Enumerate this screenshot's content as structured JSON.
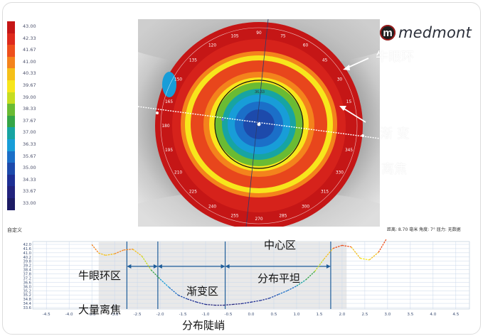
{
  "brand": {
    "logo_letter": "m",
    "name": "medmont"
  },
  "scale": {
    "values": [
      "43.00",
      "42.33",
      "41.67",
      "41.00",
      "40.33",
      "39.67",
      "39.00",
      "38.33",
      "37.67",
      "37.00",
      "36.33",
      "35.67",
      "35.00",
      "34.33",
      "33.67",
      "33.00"
    ],
    "colors": [
      "#c51616",
      "#de2a1c",
      "#ee4f1c",
      "#f4831c",
      "#f5c019",
      "#f7e61c",
      "#c6dd21",
      "#6abb33",
      "#35a547",
      "#17a4a2",
      "#189dd8",
      "#1b6fc8",
      "#1d4aab",
      "#1e2f94",
      "#22237d",
      "#1c1b64"
    ],
    "custom_label": "自定义"
  },
  "map": {
    "axis_numbers": [
      "105",
      "90",
      "75",
      "60",
      "120",
      "45",
      "135",
      "30",
      "150",
      "15",
      "180",
      "165",
      "195",
      "210",
      "225",
      "240",
      "255",
      "270",
      "285",
      "300",
      "315",
      "330",
      "345"
    ],
    "center_label": "36.33",
    "status": "距离: 8.70 毫米  角度: 7°  屈力: 无数据"
  },
  "annotations": {
    "ring": "牛眼环",
    "gradient": "渐 变",
    "defocus": "离焦"
  },
  "profile": {
    "y_ticks": [
      "42.0",
      "41.6",
      "41.0",
      "40.2",
      "39.8",
      "39.2",
      "38.4",
      "37.8",
      "37.2",
      "36.6",
      "36.0",
      "35.2",
      "35.2",
      "34.8",
      "34.4",
      "33.6"
    ],
    "x_ticks": [
      "-4.5",
      "-4.0",
      "-3.5",
      "-3.0",
      "-2.5",
      "-2.0",
      "-1.5",
      "-1.0",
      "-0.5",
      "0.0",
      "0.5",
      "1.0",
      "1.5",
      "2.0",
      "2.5",
      "3.0",
      "3.5",
      "4.0",
      "4.5"
    ],
    "zone_labels": {
      "center": "中心区",
      "ring": "牛眼环区",
      "flat": "分布平坦",
      "transition": "渐变区",
      "defocus": "大量离焦",
      "slope": "分布陡峭"
    }
  },
  "chart_data": {
    "type": "line",
    "x": [
      -3.5,
      -3.35,
      -3.2,
      -3.0,
      -2.8,
      -2.6,
      -2.4,
      -2.2,
      -2.0,
      -1.8,
      -1.6,
      -1.4,
      -1.2,
      -1.0,
      -0.8,
      -0.6,
      -0.4,
      -0.2,
      0.0,
      0.2,
      0.4,
      0.6,
      0.8,
      1.0,
      1.2,
      1.4,
      1.6,
      1.8,
      2.0,
      2.2,
      2.4,
      2.6,
      2.8,
      3.0
    ],
    "series": [
      {
        "values": [
          42.0,
          40.9,
          40.6,
          40.8,
          41.3,
          41.4,
          40.5,
          38.7,
          37.5,
          36.4,
          35.4,
          34.9,
          34.5,
          34.2,
          34.1,
          34.1,
          34.2,
          34.3,
          34.5,
          34.7,
          35.0,
          35.5,
          36.0,
          36.6,
          37.4,
          38.5,
          40.1,
          41.5,
          41.9,
          41.7,
          40.2,
          40.0,
          41.0,
          43.0
        ]
      }
    ],
    "xlim": [
      -4.8,
      4.8
    ],
    "ylim": [
      33.6,
      42.4
    ],
    "boundaries": [
      -2.73,
      -2.05,
      -0.57,
      1.75
    ],
    "grid": true
  }
}
